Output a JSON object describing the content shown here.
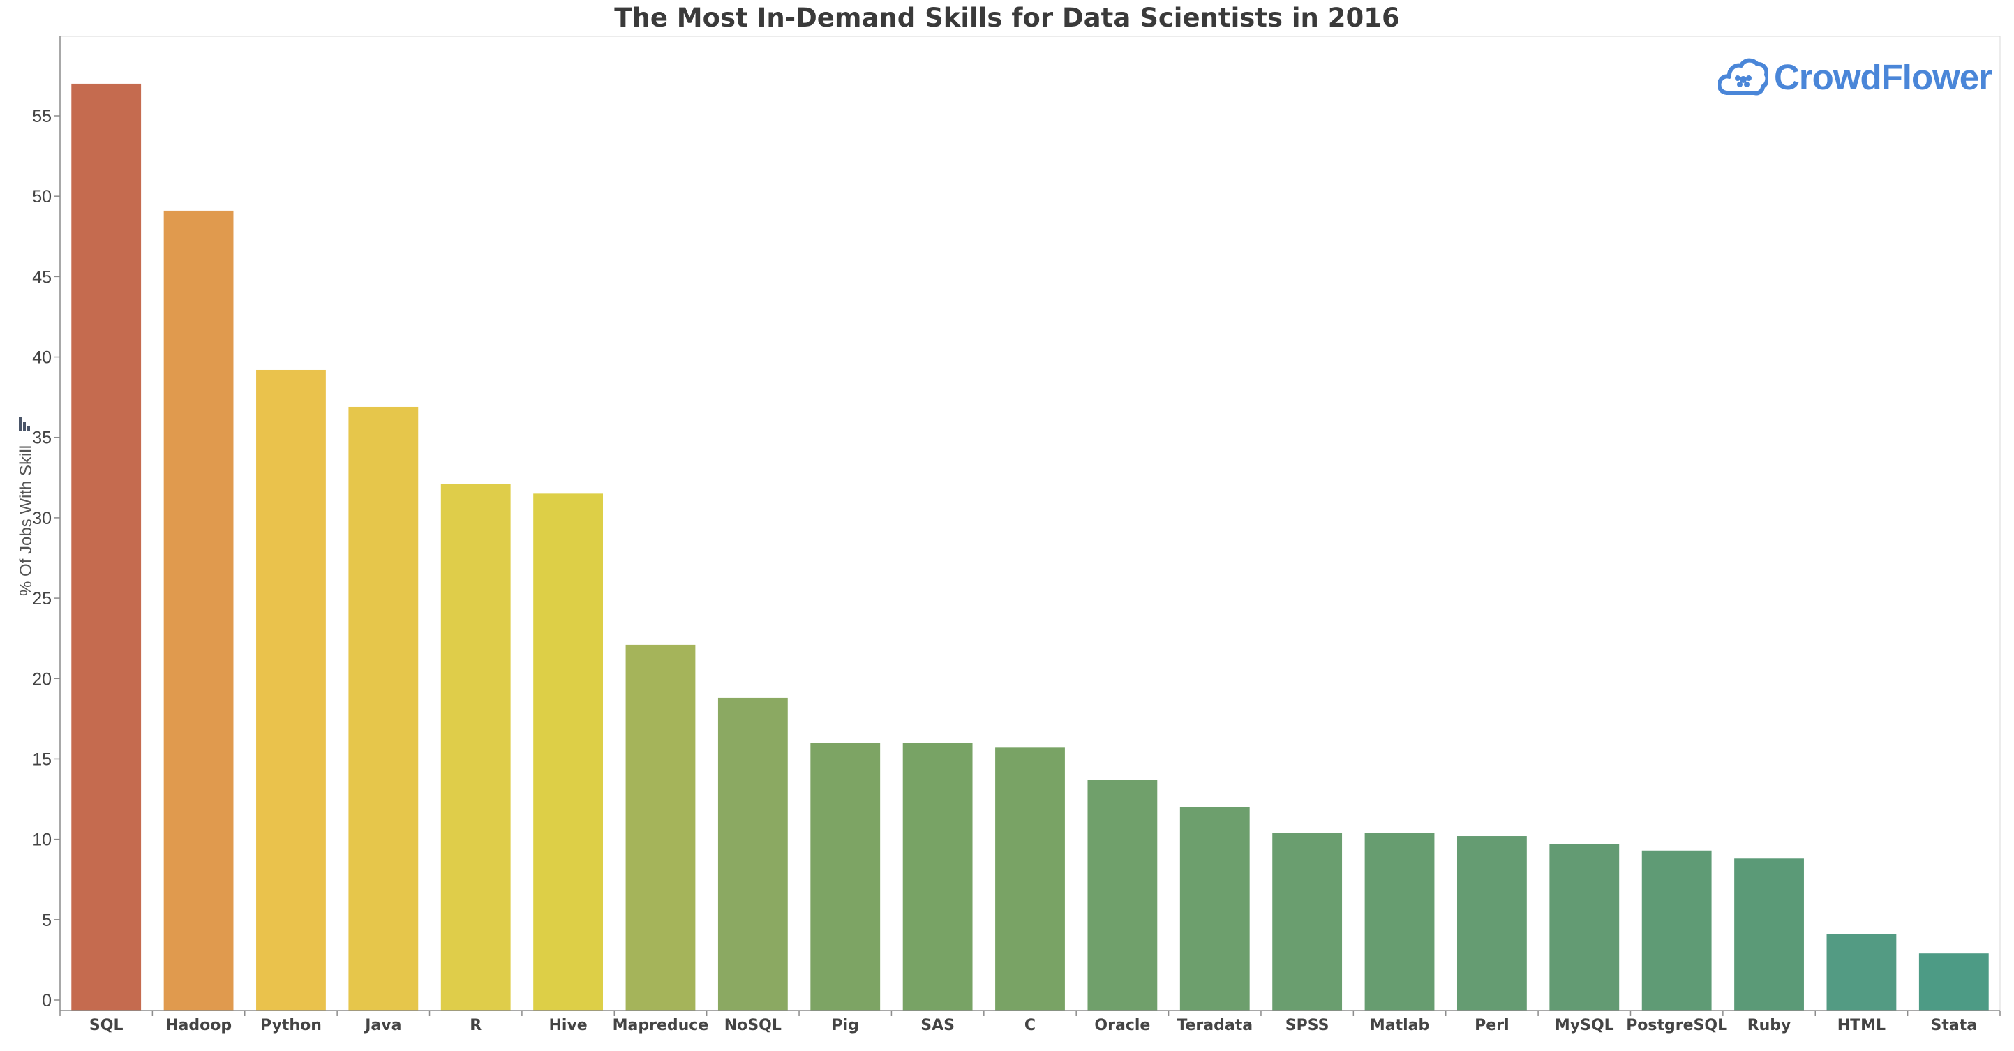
{
  "chart_data": {
    "type": "bar",
    "title": "The Most In-Demand Skills for Data Scientists in 2016",
    "xlabel": "",
    "ylabel": "% Of Jobs With Skill",
    "ylim": [
      0,
      58
    ],
    "yticks": [
      0,
      5,
      10,
      15,
      20,
      25,
      30,
      35,
      40,
      45,
      50,
      55
    ],
    "grid": false,
    "categories": [
      "SQL",
      "Hadoop",
      "Python",
      "Java",
      "R",
      "Hive",
      "Mapreduce",
      "NoSQL",
      "Pig",
      "SAS",
      "C",
      "Oracle",
      "Teradata",
      "SPSS",
      "Matlab",
      "Perl",
      "MySQL",
      "PostgreSQL",
      "Ruby",
      "HTML",
      "Stata"
    ],
    "values": [
      57.0,
      49.1,
      39.2,
      36.9,
      32.1,
      31.5,
      22.1,
      18.8,
      16.0,
      16.0,
      15.7,
      13.7,
      12.0,
      10.4,
      10.4,
      10.2,
      9.7,
      9.3,
      8.8,
      4.1,
      2.9
    ],
    "colors": [
      "#c56b4f",
      "#e09a4e",
      "#eac24c",
      "#e6c64b",
      "#dfcd4a",
      "#ddcf47",
      "#a5b45a",
      "#8ba962",
      "#7da464",
      "#78a365",
      "#79a365",
      "#70a06b",
      "#6d9f6d",
      "#6a9e6f",
      "#679d70",
      "#659c72",
      "#639b73",
      "#5f9b75",
      "#5b9a77",
      "#539b83",
      "#4d9b85"
    ]
  },
  "logo": {
    "text": "CrowdFlower",
    "color": "#4a86d8"
  },
  "icons": {
    "axis_icon": "bar-chart-icon",
    "logo_icon": "cloud-flower-icon"
  }
}
